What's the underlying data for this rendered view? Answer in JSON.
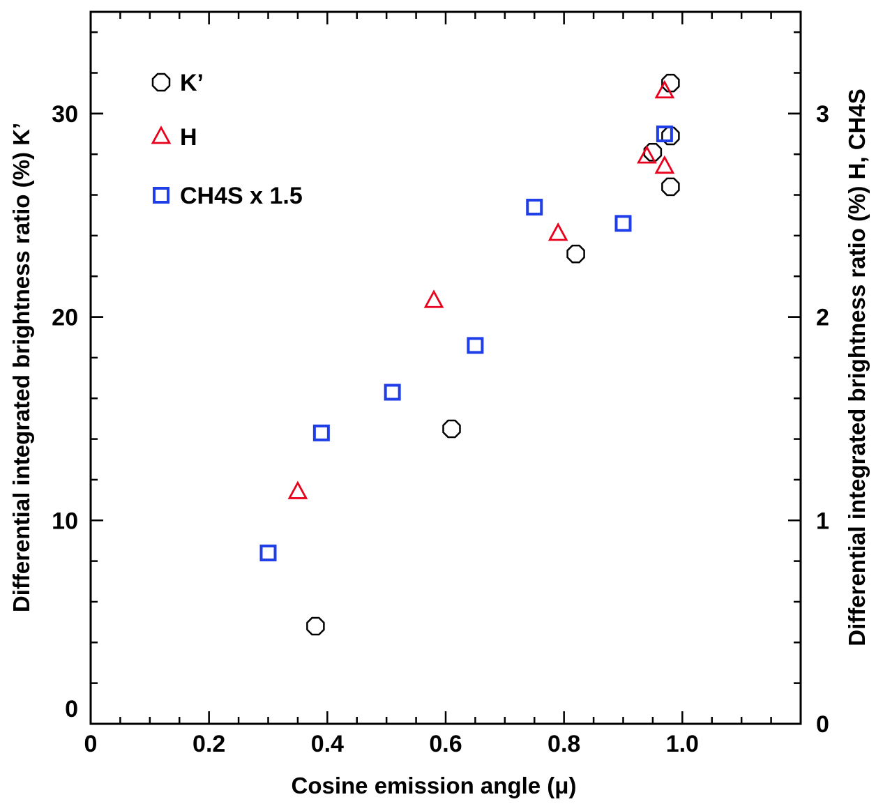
{
  "chart_data": {
    "type": "scatter",
    "xlabel": "Cosine emission angle (μ)",
    "ylabel_left": "Differential integrated brightness ratio (%)  K’",
    "ylabel_right": "Differential integrated brightness ratio (%)  H, CH4S",
    "xlim": [
      0,
      1.2
    ],
    "ylim_left": [
      0,
      35
    ],
    "ylim_right": [
      0,
      3.5
    ],
    "x_ticks": [
      "0",
      "0.2",
      "0.4",
      "0.6",
      "0.8",
      "1.0"
    ],
    "y_ticks_left": [
      "0",
      "10",
      "20",
      "30"
    ],
    "y_ticks_right": [
      "0",
      "1",
      "2",
      "3"
    ],
    "legend_position": "top-left",
    "grid": false,
    "series": [
      {
        "name": "K’",
        "marker": "circle",
        "color": "#000000",
        "axis": "left",
        "x": [
          0.38,
          0.61,
          0.82,
          0.95,
          0.98,
          0.98,
          0.98
        ],
        "y": [
          4.8,
          14.5,
          23.1,
          28.1,
          31.5,
          28.9,
          26.4
        ]
      },
      {
        "name": "H",
        "marker": "triangle",
        "color": "#e8001c",
        "axis": "right",
        "x": [
          0.35,
          0.58,
          0.79,
          0.94,
          0.97,
          0.97
        ],
        "y": [
          1.14,
          2.08,
          2.41,
          2.79,
          3.11,
          2.74
        ]
      },
      {
        "name": "CH4S x 1.5",
        "marker": "square",
        "color": "#1f3ee8",
        "axis": "right",
        "x": [
          0.3,
          0.39,
          0.51,
          0.65,
          0.75,
          0.9,
          0.97
        ],
        "y": [
          0.84,
          1.43,
          1.63,
          1.86,
          2.54,
          2.46,
          2.9
        ]
      }
    ]
  }
}
